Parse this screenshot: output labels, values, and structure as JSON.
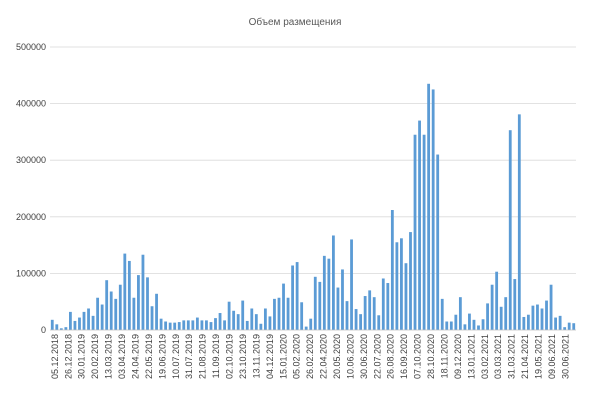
{
  "chart_data": {
    "type": "bar",
    "title": "Объем размещения",
    "xlabel": "",
    "ylabel": "",
    "ylim": [
      0,
      500000
    ],
    "yticks": [
      0,
      100000,
      200000,
      300000,
      400000,
      500000
    ],
    "ytick_labels": [
      "0",
      "100000",
      "200000",
      "300000",
      "400000",
      "500000"
    ],
    "grid": true,
    "legend": "none",
    "color": "#5b9bd5",
    "x_tick_labels": [
      "05.12.2018",
      "26.12.2018",
      "30.01.2019",
      "20.02.2019",
      "13.03.2019",
      "03.04.2019",
      "24.04.2019",
      "22.05.2019",
      "19.06.2019",
      "10.07.2019",
      "31.07.2019",
      "21.08.2019",
      "11.09.2019",
      "02.10.2019",
      "23.10.2019",
      "13.11.2019",
      "04.12.2019",
      "15.01.2020",
      "05.02.2020",
      "26.02.2020",
      "22.04.2020",
      "20.05.2020",
      "10.06.2020",
      "30.06.2020",
      "22.07.2020",
      "26.08.2020",
      "16.09.2020",
      "07.10.2020",
      "28.10.2020",
      "18.11.2020",
      "09.12.2020",
      "13.01.2021",
      "03.02.2021",
      "03.03.2021",
      "31.03.2021",
      "21.04.2021",
      "19.05.2021",
      "09.06.2021",
      "30.06.2021"
    ],
    "values": [
      18000,
      10000,
      3000,
      5000,
      32000,
      16000,
      22000,
      32000,
      38000,
      25000,
      57000,
      45000,
      88000,
      68000,
      55000,
      80000,
      135000,
      122000,
      57000,
      97000,
      133000,
      93000,
      42000,
      64000,
      20000,
      15000,
      13000,
      13000,
      14000,
      17000,
      17000,
      17000,
      22000,
      17000,
      17000,
      14000,
      21000,
      30000,
      17000,
      50000,
      34000,
      28000,
      52000,
      16000,
      38000,
      28000,
      11000,
      38000,
      24000,
      55000,
      57000,
      82000,
      57000,
      114000,
      120000,
      49000,
      6000,
      20000,
      94000,
      85000,
      131000,
      126000,
      167000,
      75000,
      107000,
      51000,
      160000,
      37000,
      28000,
      60000,
      70000,
      58000,
      26000,
      91000,
      83000,
      212000,
      155000,
      162000,
      118000,
      173000,
      345000,
      370000,
      345000,
      435000,
      425000,
      310000,
      55000,
      15000,
      15000,
      27000,
      58000,
      10000,
      29000,
      18000,
      8000,
      19000,
      47000,
      80000,
      103000,
      41000,
      58000,
      353000,
      90000,
      381000,
      23000,
      27000,
      43000,
      45000,
      38000,
      52000,
      80000,
      22000,
      25000,
      5000,
      13000,
      12000
    ]
  }
}
